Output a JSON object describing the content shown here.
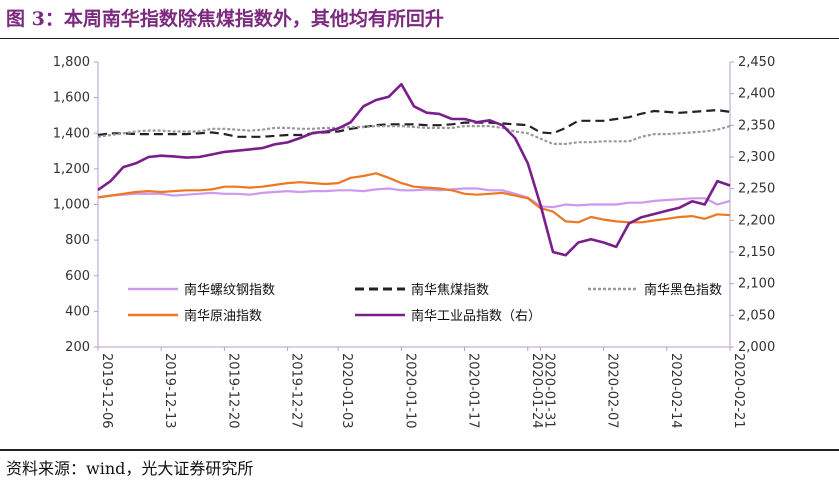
{
  "figure": {
    "title": "图 3：本周南华指数除焦煤指数外，其他均有所回升",
    "source": "资料来源：wind，光大证券研究所"
  },
  "chart_data": {
    "type": "line",
    "x": [
      "2019-12-06",
      "2019-12-09",
      "2019-12-10",
      "2019-12-11",
      "2019-12-12",
      "2019-12-13",
      "2019-12-16",
      "2019-12-17",
      "2019-12-18",
      "2019-12-19",
      "2019-12-20",
      "2019-12-23",
      "2019-12-24",
      "2019-12-25",
      "2019-12-26",
      "2019-12-27",
      "2019-12-30",
      "2019-12-31",
      "2020-01-02",
      "2020-01-03",
      "2020-01-06",
      "2020-01-07",
      "2020-01-08",
      "2020-01-09",
      "2020-01-10",
      "2020-01-13",
      "2020-01-14",
      "2020-01-15",
      "2020-01-16",
      "2020-01-17",
      "2020-01-20",
      "2020-01-21",
      "2020-01-22",
      "2020-01-23",
      "2020-01-24",
      "2020-01-31",
      "2020-02-03",
      "2020-02-04",
      "2020-02-05",
      "2020-02-06",
      "2020-02-07",
      "2020-02-10",
      "2020-02-11",
      "2020-02-12",
      "2020-02-13",
      "2020-02-14",
      "2020-02-17",
      "2020-02-18",
      "2020-02-19",
      "2020-02-20",
      "2020-02-21"
    ],
    "x_tick_labels": [
      "2019-12-06",
      "2019-12-13",
      "2019-12-20",
      "2019-12-27",
      "2020-01-03",
      "2020-01-10",
      "2020-01-17",
      "2020-01-24",
      "2020-01-31",
      "2020-02-07",
      "2020-02-14",
      "2020-02-21"
    ],
    "left_axis": {
      "ylim": [
        200,
        1800
      ],
      "ticks": [
        "200",
        "400",
        "600",
        "800",
        "1,000",
        "1,200",
        "1,400",
        "1,600",
        "1,800"
      ]
    },
    "right_axis": {
      "ylim": [
        2000,
        2450
      ],
      "ticks": [
        "2,000",
        "2,050",
        "2,100",
        "2,150",
        "2,200",
        "2,250",
        "2,300",
        "2,350",
        "2,400",
        "2,450"
      ]
    },
    "grid": false,
    "legend_placement": "bottom-inside",
    "series": [
      {
        "name": "南华螺纹钢指数",
        "axis": "left",
        "color": "#cc99ee",
        "style": "solid",
        "values": [
          1040,
          1050,
          1055,
          1060,
          1060,
          1060,
          1050,
          1055,
          1060,
          1065,
          1060,
          1060,
          1055,
          1065,
          1070,
          1075,
          1070,
          1075,
          1075,
          1080,
          1080,
          1075,
          1085,
          1090,
          1080,
          1080,
          1085,
          1080,
          1085,
          1090,
          1090,
          1080,
          1080,
          1060,
          1040,
          990,
          985,
          1000,
          995,
          1000,
          1000,
          1000,
          1010,
          1010,
          1020,
          1025,
          1030,
          1035,
          1035,
          1000,
          1020
        ]
      },
      {
        "name": "南华焦煤指数",
        "axis": "left",
        "color": "#222222",
        "style": "dashed",
        "values": [
          1390,
          1400,
          1400,
          1395,
          1395,
          1395,
          1395,
          1395,
          1400,
          1405,
          1395,
          1380,
          1380,
          1380,
          1385,
          1390,
          1390,
          1400,
          1405,
          1410,
          1425,
          1435,
          1445,
          1450,
          1450,
          1450,
          1445,
          1445,
          1450,
          1460,
          1460,
          1460,
          1455,
          1450,
          1445,
          1405,
          1400,
          1430,
          1470,
          1470,
          1470,
          1480,
          1490,
          1510,
          1525,
          1520,
          1515,
          1520,
          1525,
          1530,
          1520
        ]
      },
      {
        "name": "南华黑色指数",
        "axis": "left",
        "color": "#999999",
        "style": "dotted",
        "values": [
          1380,
          1390,
          1400,
          1410,
          1415,
          1415,
          1410,
          1410,
          1410,
          1425,
          1425,
          1420,
          1415,
          1420,
          1430,
          1430,
          1425,
          1425,
          1430,
          1430,
          1435,
          1435,
          1440,
          1440,
          1440,
          1435,
          1430,
          1430,
          1430,
          1440,
          1440,
          1440,
          1430,
          1410,
          1400,
          1370,
          1340,
          1340,
          1350,
          1350,
          1355,
          1355,
          1355,
          1380,
          1395,
          1395,
          1400,
          1405,
          1410,
          1420,
          1440
        ]
      },
      {
        "name": "南华原油指数",
        "axis": "left",
        "color": "#ee7722",
        "style": "solid",
        "values": [
          1040,
          1050,
          1060,
          1070,
          1075,
          1070,
          1075,
          1080,
          1080,
          1085,
          1100,
          1100,
          1095,
          1100,
          1110,
          1120,
          1125,
          1120,
          1115,
          1120,
          1150,
          1160,
          1175,
          1150,
          1120,
          1100,
          1095,
          1090,
          1080,
          1060,
          1055,
          1060,
          1065,
          1050,
          1035,
          980,
          960,
          905,
          900,
          930,
          915,
          905,
          900,
          900,
          910,
          920,
          930,
          935,
          920,
          945,
          940
        ]
      },
      {
        "name": "南华工业品指数（右）",
        "axis": "right",
        "color": "#7a1e8e",
        "style": "solid",
        "values": [
          2248,
          2262,
          2284,
          2290,
          2300,
          2302,
          2301,
          2299,
          2300,
          2304,
          2308,
          2310,
          2312,
          2314,
          2320,
          2323,
          2330,
          2338,
          2340,
          2345,
          2355,
          2380,
          2390,
          2395,
          2415,
          2380,
          2370,
          2368,
          2360,
          2360,
          2355,
          2358,
          2350,
          2330,
          2290,
          2225,
          2150,
          2145,
          2165,
          2170,
          2165,
          2158,
          2195,
          2205,
          2210,
          2215,
          2220,
          2230,
          2225,
          2262,
          2255
        ]
      }
    ]
  }
}
